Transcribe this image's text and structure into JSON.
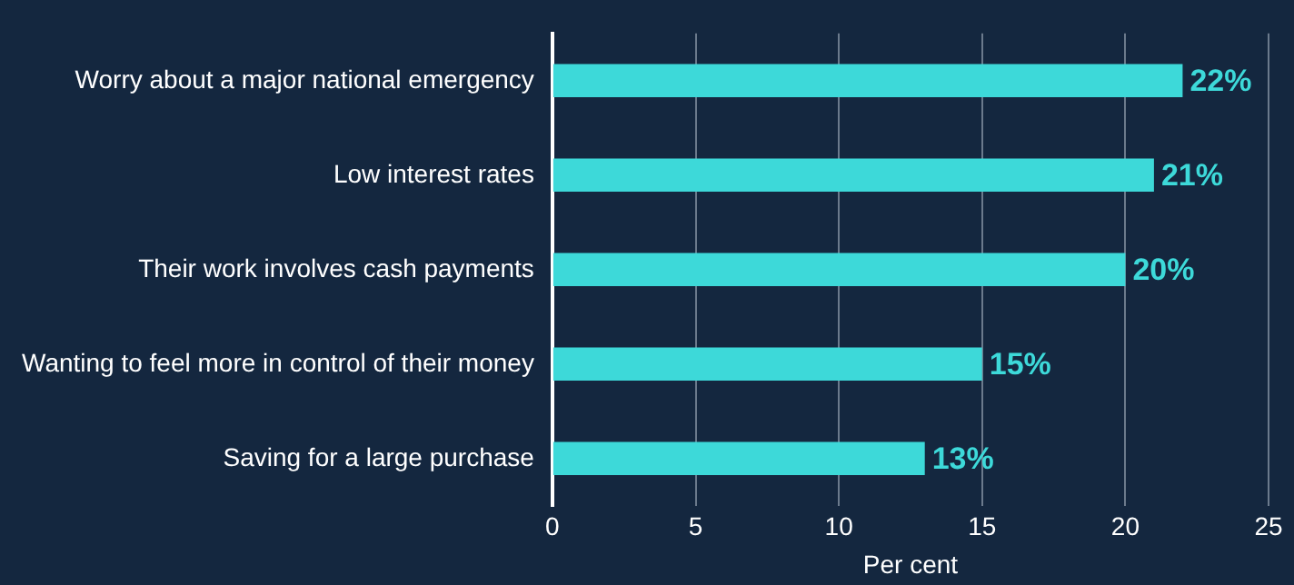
{
  "chart_data": {
    "type": "bar",
    "orientation": "horizontal",
    "xlabel": "Per cent",
    "categories": [
      "Worry about a major national emergency",
      "Low interest rates",
      "Their work involves cash payments",
      "Wanting to feel more in control of their money",
      "Saving for a large purchase"
    ],
    "values": [
      22,
      21,
      20,
      15,
      13
    ],
    "value_labels": [
      "22%",
      "21%",
      "20%",
      "15%",
      "13%"
    ],
    "color": "#3dd9d9",
    "xlim": [
      0,
      25
    ],
    "xticks": [
      0,
      5,
      10,
      15,
      20,
      25
    ],
    "grid": "x"
  }
}
